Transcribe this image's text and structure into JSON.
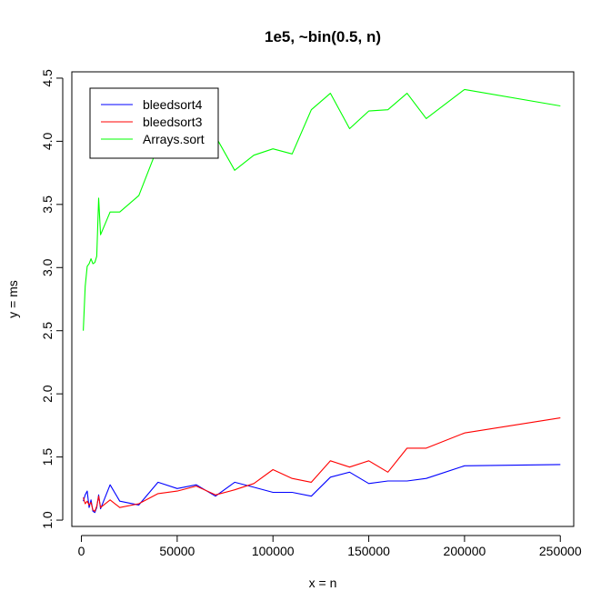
{
  "chart_data": {
    "type": "line",
    "title": "1e5, ~bin(0.5, n)",
    "xlabel": "x = n",
    "ylabel": "y = ms",
    "xlim": [
      -5000,
      257000
    ],
    "ylim": [
      0.95,
      4.55
    ],
    "x_ticks": [
      0,
      50000,
      100000,
      150000,
      200000,
      250000
    ],
    "x_tick_labels": [
      "0",
      "50000",
      "100000",
      "150000",
      "200000",
      "250000"
    ],
    "y_ticks": [
      1.0,
      1.5,
      2.0,
      2.5,
      3.0,
      3.5,
      4.0,
      4.5
    ],
    "y_tick_labels": [
      "1.0",
      "1.5",
      "2.0",
      "2.5",
      "3.0",
      "3.5",
      "4.0",
      "4.5"
    ],
    "grid": false,
    "legend_position": "top-left",
    "series": [
      {
        "name": "bleedsort4",
        "color": "#0000ff",
        "x": [
          1000,
          2000,
          3000,
          4000,
          5000,
          6000,
          7000,
          8000,
          9000,
          10000,
          15000,
          20000,
          30000,
          40000,
          50000,
          60000,
          70000,
          80000,
          90000,
          100000,
          110000,
          120000,
          130000,
          140000,
          150000,
          160000,
          170000,
          180000,
          200000,
          250000
        ],
        "values": [
          1.15,
          1.2,
          1.23,
          1.1,
          1.16,
          1.07,
          1.06,
          1.1,
          1.2,
          1.09,
          1.28,
          1.15,
          1.12,
          1.3,
          1.25,
          1.28,
          1.19,
          1.3,
          1.26,
          1.22,
          1.22,
          1.19,
          1.34,
          1.38,
          1.29,
          1.31,
          1.31,
          1.33,
          1.43,
          1.44
        ]
      },
      {
        "name": "bleedsort3",
        "color": "#ff0000",
        "x": [
          1000,
          2000,
          3000,
          4000,
          5000,
          6000,
          7000,
          8000,
          9000,
          10000,
          15000,
          20000,
          30000,
          40000,
          50000,
          60000,
          70000,
          80000,
          90000,
          100000,
          110000,
          120000,
          130000,
          140000,
          150000,
          160000,
          170000,
          180000,
          200000,
          250000
        ],
        "values": [
          1.18,
          1.13,
          1.15,
          1.12,
          1.14,
          1.08,
          1.07,
          1.11,
          1.19,
          1.1,
          1.16,
          1.1,
          1.13,
          1.21,
          1.23,
          1.27,
          1.2,
          1.24,
          1.29,
          1.4,
          1.33,
          1.3,
          1.47,
          1.42,
          1.47,
          1.38,
          1.57,
          1.57,
          1.69,
          1.81
        ]
      },
      {
        "name": "Arrays.sort",
        "color": "#00ff00",
        "x": [
          1000,
          2000,
          3000,
          4000,
          5000,
          6000,
          7000,
          8000,
          9000,
          10000,
          15000,
          20000,
          30000,
          40000,
          50000,
          60000,
          70000,
          80000,
          90000,
          100000,
          110000,
          120000,
          130000,
          140000,
          150000,
          160000,
          170000,
          180000,
          200000,
          250000
        ],
        "values": [
          2.5,
          2.85,
          3.01,
          3.03,
          3.07,
          3.03,
          3.04,
          3.09,
          3.55,
          3.26,
          3.44,
          3.44,
          3.57,
          3.96,
          3.98,
          4.0,
          4.04,
          3.77,
          3.89,
          3.94,
          3.9,
          4.25,
          4.38,
          4.1,
          4.24,
          4.25,
          4.38,
          4.18,
          4.41,
          4.28
        ]
      }
    ]
  }
}
